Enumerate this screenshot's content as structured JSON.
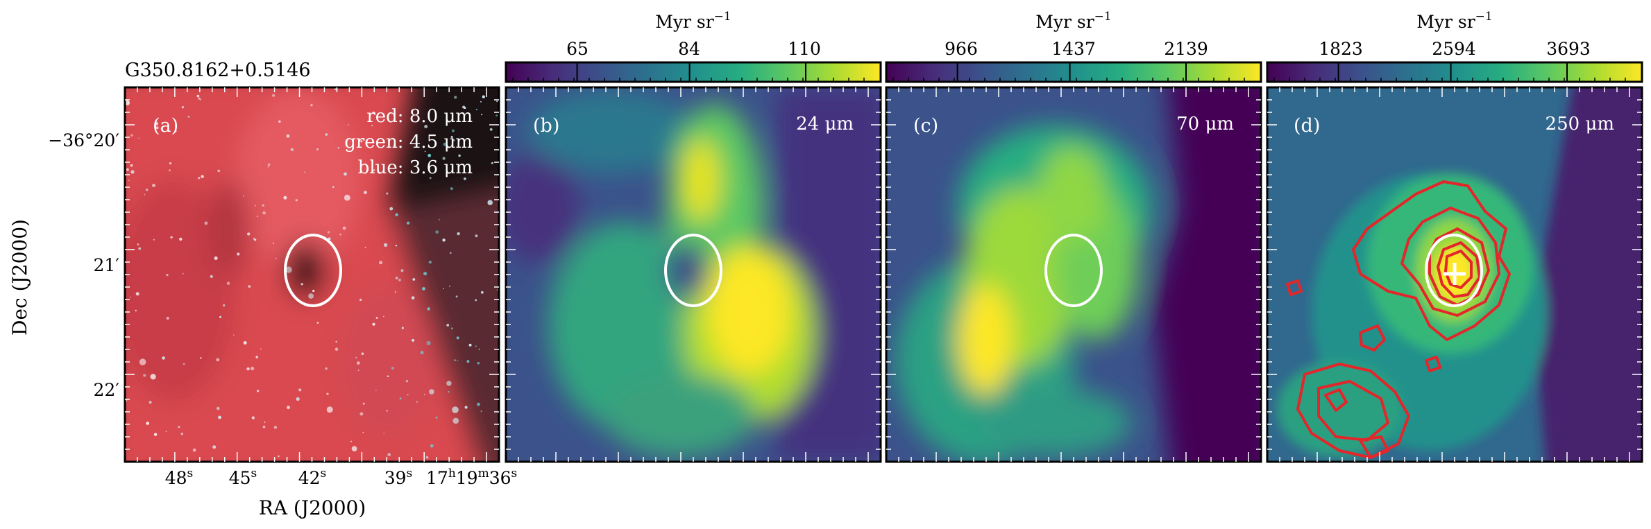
{
  "figure": {
    "source_name": "G350.8162+0.5146",
    "x_axis_label": "RA (J2000)",
    "y_axis_label": "Dec (J2000)",
    "ra_ticks": [
      {
        "base": "48",
        "sup": "s"
      },
      {
        "base": "45",
        "sup": "s"
      },
      {
        "base": "42",
        "sup": "s"
      },
      {
        "base": "39",
        "sup": "s"
      },
      {
        "base": "17",
        "sup": "h",
        "base2": "19",
        "sup2": "m",
        "base3": "36",
        "sup3": "s"
      }
    ],
    "dec_ticks": [
      "−36°20′",
      "21′",
      "22′"
    ]
  },
  "panels": [
    {
      "letter": "(a)",
      "rgb_legend": [
        "red: 8.0 μm",
        "green: 4.5 μm",
        "blue: 3.6 μm"
      ],
      "image_kind": "three-color-composite"
    },
    {
      "letter": "(b)",
      "band": "24 μm",
      "colorbar": {
        "unit": "Myr sr",
        "unit_exp": "−1",
        "ticks": [
          "65",
          "84",
          "110"
        ],
        "colormap": "viridis"
      }
    },
    {
      "letter": "(c)",
      "band": "70 μm",
      "colorbar": {
        "unit": "Myr sr",
        "unit_exp": "−1",
        "ticks": [
          "966",
          "1437",
          "2139"
        ],
        "colormap": "viridis"
      }
    },
    {
      "letter": "(d)",
      "band": "250 μm",
      "colorbar": {
        "unit": "Myr sr",
        "unit_exp": "−1",
        "ticks": [
          "1823",
          "2594",
          "3693"
        ],
        "colormap": "viridis"
      },
      "overlays": [
        "contours",
        "peak-cross"
      ]
    }
  ],
  "colors": {
    "viridis": [
      "#440154",
      "#472c7a",
      "#3b518b",
      "#2c718e",
      "#21908d",
      "#27ad81",
      "#5cc863",
      "#aadc32",
      "#fde725"
    ],
    "rgb_base": "#d9484f",
    "contour": "#e3262a",
    "marker": "#ffffff"
  }
}
